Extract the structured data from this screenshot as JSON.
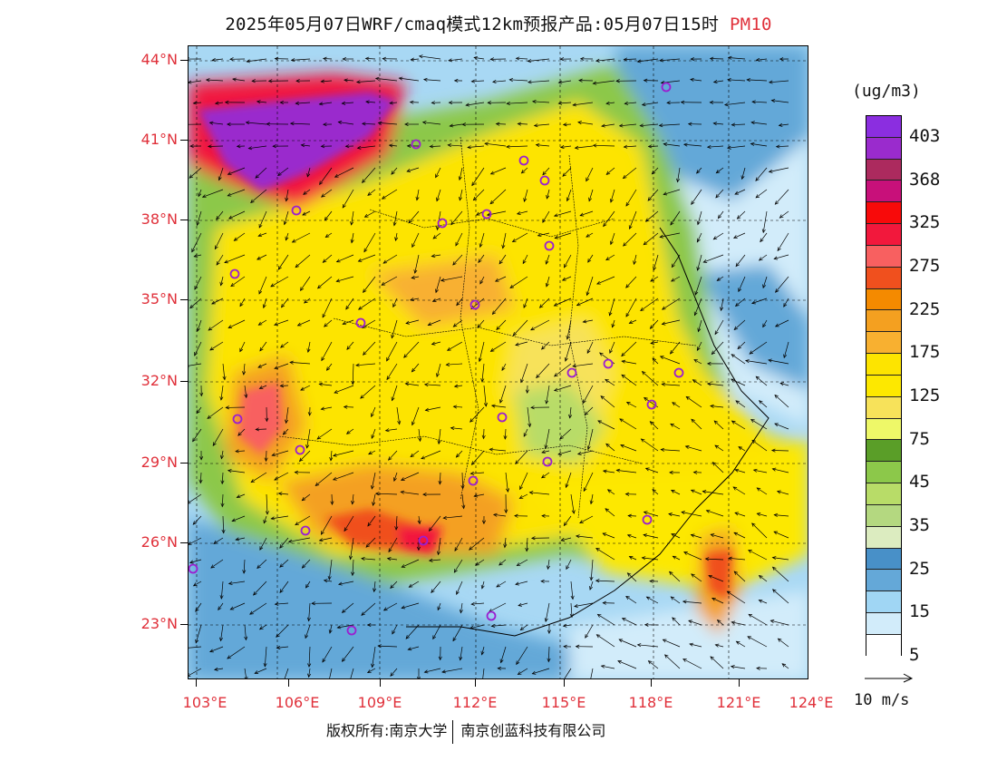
{
  "title": {
    "text": "2025年05月07日WRF/cmaq模式12km预报产品:05月07日15时",
    "pollutant": "PM10"
  },
  "map": {
    "lat_labels": [
      "44°N",
      "41°N",
      "38°N",
      "35°N",
      "32°N",
      "29°N",
      "26°N",
      "23°N"
    ],
    "lon_labels": [
      "103°E",
      "106°E",
      "109°E",
      "112°E",
      "115°E",
      "118°E",
      "121°E",
      "124°E"
    ],
    "station_color": "#9b1fd0"
  },
  "legend": {
    "unit": "(ug/m3)",
    "colors": [
      "#8b2ee0",
      "#9a2bcd",
      "#ac2a5e",
      "#c8107a",
      "#f80a0a",
      "#f2183c",
      "#f86060",
      "#f0501e",
      "#f48a00",
      "#f4a020",
      "#f8b030",
      "#fde400",
      "#fde800",
      "#f7e25a",
      "#eef868",
      "#5a9e28",
      "#8cc84a",
      "#b8dc68",
      "#b4d880",
      "#dcecc0",
      "#4890c8",
      "#64a8d8",
      "#a0d6f4",
      "#d2ecfa",
      "#ffffff"
    ],
    "labels": [
      "403",
      "368",
      "325",
      "275",
      "225",
      "175",
      "125",
      "75",
      "45",
      "35",
      "25",
      "15",
      "5"
    ]
  },
  "wind_reference": {
    "label": "10 m/s"
  },
  "copyright": {
    "left": "版权所有:南京大学",
    "right": "南京创蓝科技有限公司"
  }
}
